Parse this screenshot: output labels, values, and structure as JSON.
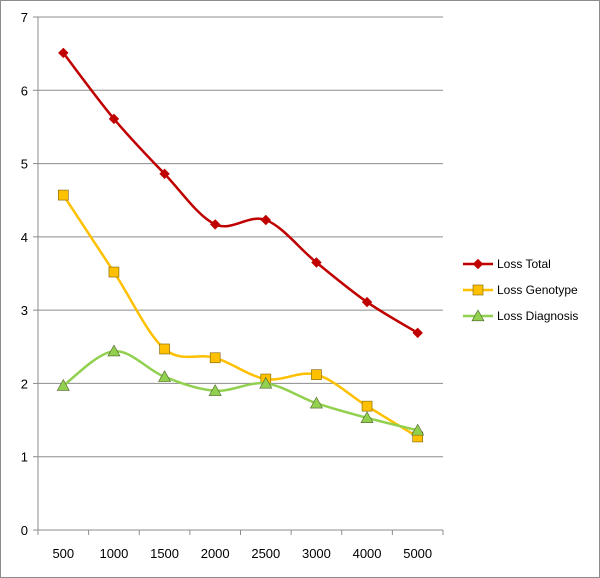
{
  "chart_data": {
    "type": "line",
    "title": "",
    "xlabel": "",
    "ylabel": "",
    "categories": [
      "500",
      "1000",
      "1500",
      "2000",
      "2500",
      "3000",
      "4000",
      "5000"
    ],
    "ylim": [
      0,
      7
    ],
    "yticks": [
      "0",
      "1",
      "2",
      "3",
      "4",
      "5",
      "6",
      "7"
    ],
    "grid": "horizontal",
    "legend_position": "right",
    "smooth": true,
    "series": [
      {
        "name": "Loss Total",
        "color": "#c00000",
        "marker": "diamond",
        "values": [
          6.51,
          5.61,
          4.86,
          4.17,
          4.23,
          3.65,
          3.11,
          2.69
        ]
      },
      {
        "name": "Loss Genotype",
        "color": "#ffc000",
        "marker": "square",
        "values": [
          4.57,
          3.52,
          2.47,
          2.35,
          2.06,
          2.12,
          1.69,
          1.27
        ]
      },
      {
        "name": "Loss Diagnosis",
        "color": "#92d050",
        "marker": "triangle",
        "values": [
          1.97,
          2.44,
          2.09,
          1.9,
          2.0,
          1.73,
          1.53,
          1.36
        ]
      }
    ]
  }
}
